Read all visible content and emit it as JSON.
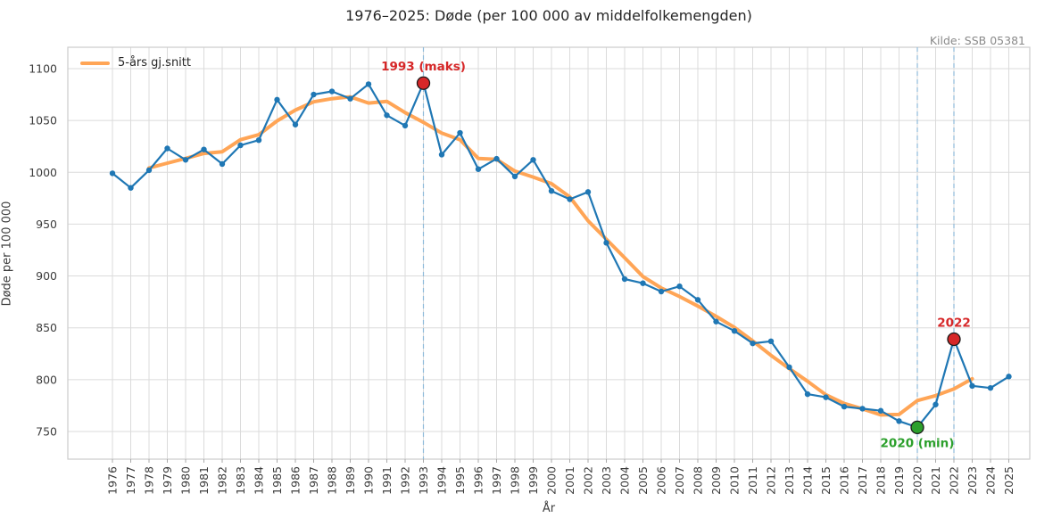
{
  "title": "1976–2025: Døde (per 100 000 av middelfolkemengden)",
  "source": "Kilde: SSB 05381",
  "legend": {
    "avg_label": "5-års gj.snitt"
  },
  "axes": {
    "xlabel": "År",
    "ylabel": "Døde per 100 000",
    "y_ticks": [
      750,
      800,
      850,
      900,
      950,
      1000,
      1050,
      1100
    ]
  },
  "colors": {
    "line_blue": "#1f77b4",
    "avg_orange": "#ffa556",
    "annotation_red": "#d62728",
    "annotation_green": "#2ca02c",
    "dashed_guide": "#8fbbda",
    "gridline": "#dbdbdb",
    "spine": "#cccccc",
    "tick_text": "#3d3d3d",
    "tick_mark": "#aaaaaa"
  },
  "chart_data": {
    "type": "line",
    "title": "1976–2025: Døde (per 100 000 av middelfolkemengden)",
    "xlabel": "År",
    "ylabel": "Døde per 100 000",
    "grid": true,
    "legend_position": "upper left",
    "xlim": [
      1973.5,
      2026.5
    ],
    "ylim": [
      723,
      1121
    ],
    "x": [
      1976,
      1977,
      1978,
      1979,
      1980,
      1981,
      1982,
      1983,
      1984,
      1985,
      1986,
      1987,
      1988,
      1989,
      1990,
      1991,
      1992,
      1993,
      1994,
      1995,
      1996,
      1997,
      1998,
      1999,
      2000,
      2001,
      2002,
      2003,
      2004,
      2005,
      2006,
      2007,
      2008,
      2009,
      2010,
      2011,
      2012,
      2013,
      2014,
      2015,
      2016,
      2017,
      2018,
      2019,
      2020,
      2021,
      2022,
      2023,
      2024,
      2025
    ],
    "series": [
      {
        "name": "Døde per 100 000",
        "style": "solid-with-markers",
        "values": [
          999,
          985,
          1002,
          1023,
          1012,
          1022,
          1008,
          1026,
          1031,
          1070,
          1046,
          1075,
          1078,
          1071,
          1085,
          1055,
          1045,
          1086,
          1017,
          1038,
          1003,
          1013,
          996,
          1012,
          982,
          974,
          981,
          932,
          897,
          893,
          885,
          890,
          877,
          856,
          847,
          835,
          837,
          812,
          786,
          783,
          774,
          772,
          770,
          760,
          754,
          776,
          839,
          794,
          792,
          803
        ]
      },
      {
        "name": "5-års gj.snitt",
        "style": "smooth-thick",
        "derived": "centered 5-year moving average of first series (1978–2023)"
      }
    ],
    "annotations": [
      {
        "year": 1993,
        "value": 1086,
        "label": "1993 (maks)",
        "color": "#d62728",
        "label_position": "above"
      },
      {
        "year": 2020,
        "value": 754,
        "label": "2020 (min)",
        "color": "#2ca02c",
        "label_position": "below"
      },
      {
        "year": 2022,
        "value": 839,
        "label": "2022",
        "color": "#d62728",
        "label_position": "above"
      }
    ]
  }
}
